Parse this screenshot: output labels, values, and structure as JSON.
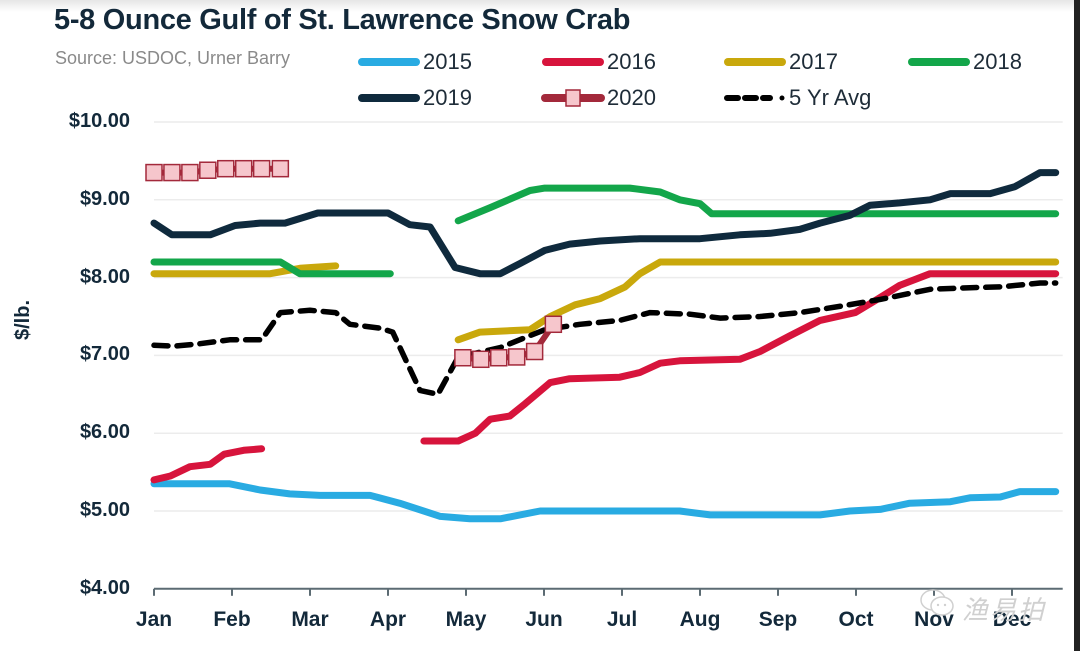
{
  "chart_data": {
    "type": "line",
    "title": "5-8 Ounce Gulf of St. Lawrence Snow Crab",
    "subtitle": "Source: USDOC, Urner Barry",
    "xlabel": "",
    "ylabel": "$/lb.",
    "ylim": [
      4,
      10
    ],
    "xlim": [
      0,
      11.65
    ],
    "grid": true,
    "legend_position": "top",
    "yticks": [
      {
        "value": 10,
        "label": "$10.00"
      },
      {
        "value": 9,
        "label": "$9.00"
      },
      {
        "value": 8,
        "label": "$8.00"
      },
      {
        "value": 7,
        "label": "$7.00"
      },
      {
        "value": 6,
        "label": "$6.00"
      },
      {
        "value": 5,
        "label": "$5.00"
      },
      {
        "value": 4,
        "label": "$4.00"
      }
    ],
    "xticks": [
      "Jan",
      "Feb",
      "Mar",
      "Apr",
      "May",
      "Jun",
      "Jul",
      "Aug",
      "Sep",
      "Oct",
      "Nov",
      "Dec"
    ],
    "series": [
      {
        "name": "2015",
        "color": "#29abe2",
        "style": "solid",
        "segments": [
          [
            [
              0,
              5.35
            ],
            [
              0.97,
              5.35
            ],
            [
              1.36,
              5.27
            ],
            [
              1.74,
              5.22
            ],
            [
              2.13,
              5.2
            ],
            [
              2.77,
              5.2
            ],
            [
              3.15,
              5.1
            ],
            [
              3.67,
              4.93
            ],
            [
              4.05,
              4.9
            ],
            [
              4.44,
              4.9
            ],
            [
              4.95,
              5.0
            ],
            [
              5.72,
              5.0
            ],
            [
              6.74,
              5.0
            ],
            [
              7.13,
              4.95
            ],
            [
              7.77,
              4.95
            ],
            [
              8.54,
              4.95
            ],
            [
              8.92,
              5.0
            ],
            [
              9.31,
              5.02
            ],
            [
              9.69,
              5.1
            ],
            [
              10.21,
              5.12
            ],
            [
              10.46,
              5.17
            ],
            [
              10.85,
              5.18
            ],
            [
              11.1,
              5.25
            ],
            [
              11.56,
              5.25
            ]
          ]
        ]
      },
      {
        "name": "2016",
        "color": "#d7143c",
        "style": "solid",
        "segments": [
          [
            [
              0,
              5.4
            ],
            [
              0.21,
              5.45
            ],
            [
              0.46,
              5.57
            ],
            [
              0.72,
              5.6
            ],
            [
              0.9,
              5.73
            ],
            [
              1.15,
              5.78
            ],
            [
              1.38,
              5.8
            ]
          ],
          [
            [
              3.46,
              5.9
            ],
            [
              3.9,
              5.9
            ],
            [
              4.12,
              6.0
            ],
            [
              4.31,
              6.18
            ],
            [
              4.56,
              6.22
            ],
            [
              4.76,
              6.38
            ],
            [
              5.08,
              6.65
            ],
            [
              5.33,
              6.7
            ],
            [
              5.97,
              6.72
            ],
            [
              6.23,
              6.78
            ],
            [
              6.49,
              6.9
            ],
            [
              6.74,
              6.93
            ],
            [
              7.51,
              6.95
            ],
            [
              7.77,
              7.05
            ],
            [
              8.15,
              7.25
            ],
            [
              8.54,
              7.45
            ],
            [
              8.99,
              7.55
            ],
            [
              9.24,
              7.7
            ],
            [
              9.56,
              7.9
            ],
            [
              9.95,
              8.05
            ],
            [
              11.56,
              8.05
            ]
          ]
        ]
      },
      {
        "name": "2017",
        "color": "#c9a80c",
        "style": "solid",
        "segments": [
          [
            [
              0,
              8.05
            ],
            [
              1.49,
              8.05
            ],
            [
              1.87,
              8.12
            ],
            [
              2.33,
              8.15
            ]
          ],
          [
            [
              3.9,
              7.2
            ],
            [
              4.18,
              7.3
            ],
            [
              4.82,
              7.33
            ],
            [
              5.08,
              7.5
            ],
            [
              5.4,
              7.65
            ],
            [
              5.72,
              7.73
            ],
            [
              6.04,
              7.88
            ],
            [
              6.23,
              8.05
            ],
            [
              6.49,
              8.2
            ],
            [
              11.56,
              8.2
            ]
          ]
        ]
      },
      {
        "name": "2018",
        "color": "#13a64a",
        "style": "solid",
        "segments": [
          [
            [
              0,
              8.2
            ],
            [
              1.62,
              8.2
            ],
            [
              1.87,
              8.05
            ],
            [
              3.03,
              8.05
            ]
          ],
          [
            [
              3.9,
              8.73
            ],
            [
              4.31,
              8.9
            ],
            [
              4.82,
              9.12
            ],
            [
              5.01,
              9.15
            ],
            [
              6.1,
              9.15
            ],
            [
              6.49,
              9.1
            ],
            [
              6.74,
              9.0
            ],
            [
              7.0,
              8.95
            ],
            [
              7.15,
              8.82
            ],
            [
              11.56,
              8.82
            ]
          ]
        ]
      },
      {
        "name": "2019",
        "color": "#0f2a3d",
        "style": "solid",
        "segments": [
          [
            [
              0,
              8.7
            ],
            [
              0.23,
              8.55
            ],
            [
              0.72,
              8.55
            ],
            [
              1.04,
              8.67
            ],
            [
              1.36,
              8.7
            ],
            [
              1.68,
              8.7
            ],
            [
              2.1,
              8.83
            ],
            [
              3.0,
              8.83
            ],
            [
              3.28,
              8.68
            ],
            [
              3.54,
              8.65
            ],
            [
              3.86,
              8.13
            ],
            [
              4.18,
              8.05
            ],
            [
              4.44,
              8.05
            ],
            [
              4.69,
              8.18
            ],
            [
              5.01,
              8.35
            ],
            [
              5.33,
              8.43
            ],
            [
              5.72,
              8.47
            ],
            [
              6.23,
              8.5
            ],
            [
              7.0,
              8.5
            ],
            [
              7.51,
              8.55
            ],
            [
              7.9,
              8.57
            ],
            [
              8.28,
              8.62
            ],
            [
              8.54,
              8.7
            ],
            [
              8.92,
              8.8
            ],
            [
              9.18,
              8.93
            ],
            [
              9.56,
              8.96
            ],
            [
              9.95,
              9.0
            ],
            [
              10.21,
              9.08
            ],
            [
              10.72,
              9.08
            ],
            [
              11.04,
              9.17
            ],
            [
              11.36,
              9.35
            ],
            [
              11.56,
              9.35
            ]
          ]
        ]
      },
      {
        "name": "2020",
        "color": "#a3293b",
        "marker_fill": "#f6c6cc",
        "style": "markers",
        "segments": [
          [
            [
              0,
              9.35
            ],
            [
              0.23,
              9.35
            ],
            [
              0.46,
              9.35
            ],
            [
              0.69,
              9.38
            ],
            [
              0.92,
              9.4
            ],
            [
              1.15,
              9.4
            ],
            [
              1.38,
              9.4
            ],
            [
              1.62,
              9.4
            ]
          ],
          [
            [
              3.96,
              6.97
            ],
            [
              4.19,
              6.95
            ],
            [
              4.42,
              6.97
            ],
            [
              4.65,
              6.98
            ],
            [
              4.88,
              7.05
            ],
            [
              5.12,
              7.4
            ]
          ]
        ]
      },
      {
        "name": "5 Yr Avg",
        "color": "#000000",
        "style": "dashed",
        "segments": [
          [
            [
              0,
              7.13
            ],
            [
              0.27,
              7.12
            ],
            [
              0.59,
              7.15
            ],
            [
              0.97,
              7.2
            ],
            [
              1.38,
              7.2
            ],
            [
              1.62,
              7.55
            ],
            [
              2.0,
              7.58
            ],
            [
              2.33,
              7.55
            ],
            [
              2.51,
              7.4
            ],
            [
              2.9,
              7.35
            ],
            [
              3.06,
              7.3
            ],
            [
              3.41,
              6.55
            ],
            [
              3.64,
              6.5
            ],
            [
              3.9,
              6.98
            ],
            [
              4.44,
              7.1
            ],
            [
              5.01,
              7.33
            ],
            [
              5.46,
              7.4
            ],
            [
              5.97,
              7.45
            ],
            [
              6.36,
              7.55
            ],
            [
              6.87,
              7.53
            ],
            [
              7.26,
              7.48
            ],
            [
              7.77,
              7.5
            ],
            [
              8.28,
              7.55
            ],
            [
              8.79,
              7.63
            ],
            [
              9.31,
              7.72
            ],
            [
              9.95,
              7.85
            ],
            [
              10.46,
              7.87
            ],
            [
              10.85,
              7.88
            ],
            [
              11.36,
              7.93
            ],
            [
              11.56,
              7.93
            ]
          ]
        ]
      }
    ]
  },
  "watermark": {
    "text": "渔易拍",
    "icon": "wechat-icon"
  }
}
